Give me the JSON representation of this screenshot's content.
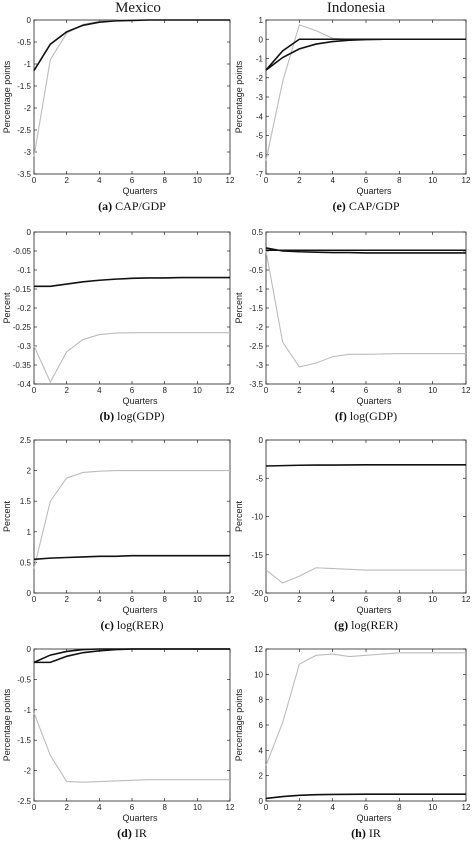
{
  "columns": [
    "Mexico",
    "Indonesia"
  ],
  "chart_data": [
    {
      "type": "line",
      "id": "a",
      "letter": "(a)",
      "label": "CAP/GDP",
      "xlabel": "Quarters",
      "ylabel": "Percentage points",
      "xlim": [
        0,
        12
      ],
      "ylim": [
        -3.5,
        0
      ],
      "xticks": [
        0,
        2,
        4,
        6,
        8,
        10,
        12
      ],
      "yticks": [
        -3.5,
        -3,
        -2.5,
        -2,
        -1.5,
        -1,
        -0.5,
        0
      ],
      "x": [
        0,
        1,
        2,
        3,
        4,
        5,
        6,
        7,
        8,
        9,
        10,
        11,
        12
      ],
      "series": [
        {
          "style": "dark",
          "values": [
            -1.15,
            -0.55,
            -0.27,
            -0.12,
            -0.05,
            -0.02,
            -0.01,
            0,
            0,
            0,
            0,
            0,
            0
          ]
        },
        {
          "style": "light",
          "values": [
            -3.1,
            -0.9,
            -0.3,
            -0.1,
            -0.03,
            -0.01,
            0,
            0,
            0,
            0,
            0,
            0,
            0
          ]
        }
      ]
    },
    {
      "type": "line",
      "id": "e",
      "letter": "(e)",
      "label": "CAP/GDP",
      "xlabel": "Quarters",
      "ylabel": "Percentage points",
      "xlim": [
        0,
        12
      ],
      "ylim": [
        -7,
        1
      ],
      "xticks": [
        0,
        2,
        4,
        6,
        8,
        10,
        12
      ],
      "yticks": [
        -7,
        -6,
        -5,
        -4,
        -3,
        -2,
        -1,
        0,
        1
      ],
      "x": [
        0,
        1,
        2,
        3,
        4,
        5,
        6,
        7,
        8,
        9,
        10,
        11,
        12
      ],
      "series": [
        {
          "style": "dark",
          "values": [
            -1.6,
            -0.95,
            -0.5,
            -0.25,
            -0.12,
            -0.05,
            -0.02,
            0,
            0,
            0,
            0,
            0,
            0
          ]
        },
        {
          "style": "light",
          "values": [
            -6.3,
            -2.2,
            0.75,
            0.45,
            0.05,
            0,
            0,
            0,
            0,
            0,
            0,
            0,
            0
          ]
        },
        {
          "style": "dark",
          "values": [
            -1.6,
            -0.6,
            0.0,
            0,
            0,
            0,
            0,
            0,
            0,
            0,
            0,
            0,
            0
          ]
        }
      ]
    },
    {
      "type": "line",
      "id": "b",
      "letter": "(b)",
      "label": "log(GDP)",
      "xlabel": "Quarters",
      "ylabel": "Percent",
      "xlim": [
        0,
        12
      ],
      "ylim": [
        -0.4,
        0
      ],
      "xticks": [
        0,
        2,
        4,
        6,
        8,
        10,
        12
      ],
      "yticks": [
        -0.4,
        -0.35,
        -0.3,
        -0.25,
        -0.2,
        -0.15,
        -0.1,
        -0.05,
        0
      ],
      "x": [
        0,
        1,
        2,
        3,
        4,
        5,
        6,
        7,
        8,
        9,
        10,
        11,
        12
      ],
      "series": [
        {
          "style": "dark",
          "values": [
            -0.143,
            -0.143,
            -0.137,
            -0.131,
            -0.127,
            -0.124,
            -0.122,
            -0.121,
            -0.121,
            -0.12,
            -0.12,
            -0.12,
            -0.12
          ]
        },
        {
          "style": "light",
          "values": [
            -0.3,
            -0.395,
            -0.315,
            -0.283,
            -0.27,
            -0.266,
            -0.265,
            -0.265,
            -0.265,
            -0.265,
            -0.265,
            -0.265,
            -0.265
          ]
        }
      ]
    },
    {
      "type": "line",
      "id": "f",
      "letter": "(f)",
      "label": "log(GDP)",
      "xlabel": "Quarters",
      "ylabel": "Percent",
      "xlim": [
        0,
        12
      ],
      "ylim": [
        -3.5,
        0.5
      ],
      "xticks": [
        0,
        2,
        4,
        6,
        8,
        10,
        12
      ],
      "yticks": [
        -3.5,
        -3,
        -2.5,
        -2,
        -1.5,
        -1,
        -0.5,
        0,
        0.5
      ],
      "x": [
        0,
        1,
        2,
        3,
        4,
        5,
        6,
        7,
        8,
        9,
        10,
        11,
        12
      ],
      "series": [
        {
          "style": "dark",
          "values": [
            0.08,
            0.0,
            -0.02,
            -0.03,
            -0.04,
            -0.04,
            -0.05,
            -0.05,
            -0.05,
            -0.05,
            -0.05,
            -0.05,
            -0.05
          ]
        },
        {
          "style": "dark",
          "values": [
            0.02,
            0.02,
            0.02,
            0.02,
            0.02,
            0.02,
            0.02,
            0.02,
            0.02,
            0.02,
            0.02,
            0.02,
            0.02
          ]
        },
        {
          "style": "light",
          "values": [
            0.0,
            -2.4,
            -3.05,
            -2.95,
            -2.78,
            -2.72,
            -2.72,
            -2.71,
            -2.7,
            -2.7,
            -2.7,
            -2.7,
            -2.7
          ]
        }
      ]
    },
    {
      "type": "line",
      "id": "c",
      "letter": "(c)",
      "label": "log(RER)",
      "xlabel": "Quarters",
      "ylabel": "Percent",
      "xlim": [
        0,
        12
      ],
      "ylim": [
        0,
        2.5
      ],
      "xticks": [
        0,
        2,
        4,
        6,
        8,
        10,
        12
      ],
      "yticks": [
        0,
        0.5,
        1,
        1.5,
        2,
        2.5
      ],
      "x": [
        0,
        1,
        2,
        3,
        4,
        5,
        6,
        7,
        8,
        9,
        10,
        11,
        12
      ],
      "series": [
        {
          "style": "dark",
          "values": [
            0.55,
            0.57,
            0.58,
            0.59,
            0.6,
            0.6,
            0.61,
            0.61,
            0.61,
            0.61,
            0.61,
            0.61,
            0.61
          ]
        },
        {
          "style": "light",
          "values": [
            0.4,
            1.5,
            1.88,
            1.97,
            1.99,
            2.0,
            2.0,
            2.0,
            2.0,
            2.0,
            2.0,
            2.0,
            2.0
          ]
        }
      ]
    },
    {
      "type": "line",
      "id": "g",
      "letter": "(g)",
      "label": "log(RER)",
      "xlabel": "Quarters",
      "ylabel": "Percent",
      "xlim": [
        0,
        12
      ],
      "ylim": [
        -20,
        0
      ],
      "xticks": [
        0,
        2,
        4,
        6,
        8,
        10,
        12
      ],
      "yticks": [
        -20,
        -15,
        -10,
        -5,
        0
      ],
      "x": [
        0,
        1,
        2,
        3,
        4,
        5,
        6,
        7,
        8,
        9,
        10,
        11,
        12
      ],
      "series": [
        {
          "style": "dark",
          "values": [
            -3.4,
            -3.35,
            -3.3,
            -3.28,
            -3.27,
            -3.26,
            -3.25,
            -3.25,
            -3.25,
            -3.25,
            -3.25,
            -3.25,
            -3.25
          ]
        },
        {
          "style": "light",
          "values": [
            -17.0,
            -18.7,
            -17.8,
            -16.7,
            -16.8,
            -16.9,
            -17.0,
            -17.0,
            -17.0,
            -17.0,
            -17.0,
            -17.0,
            -17.0
          ]
        }
      ]
    },
    {
      "type": "line",
      "id": "d",
      "letter": "(d)",
      "label": "IR",
      "xlabel": "Quarters",
      "ylabel": "Percentage points",
      "xlim": [
        0,
        12
      ],
      "ylim": [
        -2.5,
        0
      ],
      "xticks": [
        0,
        2,
        4,
        6,
        8,
        10,
        12
      ],
      "yticks": [
        -2.5,
        -2,
        -1.5,
        -1,
        -0.5,
        0
      ],
      "x": [
        0,
        1,
        2,
        3,
        4,
        5,
        6,
        7,
        8,
        9,
        10,
        11,
        12
      ],
      "series": [
        {
          "style": "dark",
          "values": [
            -0.22,
            -0.22,
            -0.12,
            -0.06,
            -0.03,
            -0.01,
            0,
            0,
            0,
            0,
            0,
            0,
            0
          ]
        },
        {
          "style": "light",
          "values": [
            -1.05,
            -1.75,
            -2.18,
            -2.19,
            -2.18,
            -2.17,
            -2.16,
            -2.15,
            -2.15,
            -2.15,
            -2.15,
            -2.15,
            -2.15
          ]
        },
        {
          "style": "dark",
          "values": [
            -0.22,
            -0.1,
            -0.04,
            -0.01,
            0,
            0,
            0,
            0,
            0,
            0,
            0,
            0,
            0
          ]
        }
      ]
    },
    {
      "type": "line",
      "id": "h",
      "letter": "(h)",
      "label": "IR",
      "xlabel": "Quarters",
      "ylabel": "Percentage points",
      "xlim": [
        0,
        12
      ],
      "ylim": [
        0,
        12
      ],
      "xticks": [
        0,
        2,
        4,
        6,
        8,
        10,
        12
      ],
      "yticks": [
        0,
        2,
        4,
        6,
        8,
        10,
        12
      ],
      "x": [
        0,
        1,
        2,
        3,
        4,
        5,
        6,
        7,
        8,
        9,
        10,
        11,
        12
      ],
      "series": [
        {
          "style": "dark",
          "values": [
            0.2,
            0.35,
            0.45,
            0.5,
            0.52,
            0.53,
            0.54,
            0.54,
            0.54,
            0.54,
            0.54,
            0.54,
            0.54
          ]
        },
        {
          "style": "light",
          "values": [
            2.8,
            6.2,
            10.8,
            11.5,
            11.6,
            11.4,
            11.5,
            11.6,
            11.7,
            11.7,
            11.7,
            11.7,
            11.7
          ]
        }
      ]
    }
  ],
  "colors": {
    "dark": "#111111",
    "light": "#bcbcbc"
  }
}
